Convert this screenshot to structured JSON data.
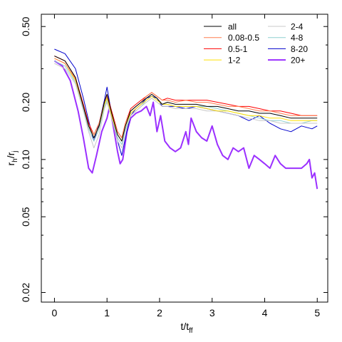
{
  "chart_data": {
    "type": "line",
    "xlabel": "t/t",
    "xlabel_sub": "ff",
    "ylabel": "r",
    "ylabel_sub1": "h",
    "ylabel_mid": "/r",
    "ylabel_sub2": "j",
    "xlim": [
      -0.25,
      5.2
    ],
    "ylim": [
      0.0178,
      0.58
    ],
    "yscale": "log",
    "xticks": [
      0,
      1,
      2,
      3,
      4,
      5
    ],
    "xtick_labels": [
      "0",
      "1",
      "2",
      "3",
      "4",
      "5"
    ],
    "yticks": [
      0.02,
      0.05,
      0.1,
      0.2,
      0.5
    ],
    "ytick_labels": [
      "0.02",
      "0.05",
      "0.10",
      "0.20",
      "0.50"
    ],
    "grid": false,
    "legend_position": "top-right",
    "legend_order": [
      "all",
      "0.08-0.5",
      "0.5-1",
      "1-2",
      "2-4",
      "4-8",
      "8-20",
      "20+"
    ],
    "series": [
      {
        "name": "all",
        "color": "#000000",
        "width": 1,
        "x": [
          0,
          0.2,
          0.4,
          0.55,
          0.65,
          0.75,
          0.85,
          0.95,
          1.0,
          1.1,
          1.2,
          1.28,
          1.35,
          1.45,
          1.55,
          1.65,
          1.75,
          1.85,
          1.95,
          2.05,
          2.15,
          2.3,
          2.5,
          2.7,
          2.9,
          3.1,
          3.3,
          3.5,
          3.7,
          3.9,
          4.1,
          4.3,
          4.5,
          4.7,
          4.9,
          5.0
        ],
        "y": [
          0.35,
          0.33,
          0.27,
          0.19,
          0.15,
          0.13,
          0.15,
          0.2,
          0.22,
          0.17,
          0.135,
          0.125,
          0.15,
          0.18,
          0.19,
          0.2,
          0.21,
          0.22,
          0.21,
          0.195,
          0.2,
          0.195,
          0.195,
          0.195,
          0.19,
          0.19,
          0.185,
          0.18,
          0.18,
          0.175,
          0.175,
          0.17,
          0.165,
          0.165,
          0.165,
          0.165
        ]
      },
      {
        "name": "0.08-0.5",
        "color": "#ff7f50",
        "width": 1,
        "x": [
          0,
          0.2,
          0.4,
          0.55,
          0.65,
          0.75,
          0.85,
          0.95,
          1.0,
          1.1,
          1.2,
          1.28,
          1.35,
          1.45,
          1.55,
          1.65,
          1.75,
          1.85,
          1.95,
          2.05,
          2.15,
          2.3,
          2.5,
          2.7,
          2.9,
          3.1,
          3.3,
          3.5,
          3.7,
          3.9,
          4.1,
          4.3,
          4.5,
          4.7,
          4.9,
          5.0
        ],
        "y": [
          0.34,
          0.32,
          0.265,
          0.19,
          0.15,
          0.135,
          0.155,
          0.2,
          0.215,
          0.17,
          0.14,
          0.13,
          0.155,
          0.18,
          0.19,
          0.2,
          0.215,
          0.225,
          0.215,
          0.205,
          0.205,
          0.2,
          0.205,
          0.2,
          0.2,
          0.195,
          0.19,
          0.19,
          0.185,
          0.18,
          0.18,
          0.175,
          0.17,
          0.17,
          0.17,
          0.17
        ]
      },
      {
        "name": "0.5-1",
        "color": "#ff0000",
        "width": 1,
        "x": [
          0,
          0.2,
          0.4,
          0.55,
          0.65,
          0.75,
          0.85,
          0.95,
          1.0,
          1.1,
          1.2,
          1.28,
          1.35,
          1.45,
          1.55,
          1.65,
          1.75,
          1.85,
          1.95,
          2.05,
          2.15,
          2.3,
          2.5,
          2.7,
          2.9,
          3.1,
          3.3,
          3.5,
          3.7,
          3.9,
          4.1,
          4.3,
          4.5,
          4.7,
          4.9,
          5.0
        ],
        "y": [
          0.35,
          0.33,
          0.27,
          0.195,
          0.155,
          0.135,
          0.155,
          0.2,
          0.22,
          0.175,
          0.14,
          0.13,
          0.155,
          0.185,
          0.195,
          0.205,
          0.215,
          0.225,
          0.215,
          0.205,
          0.21,
          0.205,
          0.205,
          0.205,
          0.205,
          0.2,
          0.195,
          0.19,
          0.19,
          0.185,
          0.18,
          0.18,
          0.175,
          0.17,
          0.17,
          0.17
        ]
      },
      {
        "name": "1-2",
        "color": "#ffe000",
        "width": 1,
        "x": [
          0,
          0.2,
          0.4,
          0.55,
          0.65,
          0.75,
          0.85,
          0.95,
          1.0,
          1.1,
          1.2,
          1.28,
          1.35,
          1.45,
          1.55,
          1.65,
          1.75,
          1.85,
          1.95,
          2.05,
          2.15,
          2.3,
          2.5,
          2.7,
          2.9,
          3.1,
          3.3,
          3.5,
          3.7,
          3.9,
          4.1,
          4.3,
          4.5,
          4.7,
          4.9,
          5.0
        ],
        "y": [
          0.34,
          0.32,
          0.26,
          0.19,
          0.15,
          0.13,
          0.15,
          0.195,
          0.21,
          0.165,
          0.135,
          0.125,
          0.15,
          0.175,
          0.185,
          0.195,
          0.205,
          0.215,
          0.205,
          0.195,
          0.195,
          0.19,
          0.19,
          0.19,
          0.185,
          0.18,
          0.18,
          0.175,
          0.17,
          0.17,
          0.165,
          0.165,
          0.16,
          0.16,
          0.16,
          0.16
        ]
      },
      {
        "name": "2-4",
        "color": "#c8c8c8",
        "width": 1,
        "x": [
          0,
          0.2,
          0.4,
          0.55,
          0.65,
          0.75,
          0.85,
          0.95,
          1.0,
          1.1,
          1.2,
          1.28,
          1.35,
          1.45,
          1.55,
          1.65,
          1.75,
          1.85,
          1.95,
          2.05,
          2.15,
          2.3,
          2.5,
          2.7,
          2.9,
          3.1,
          3.3,
          3.5,
          3.7,
          3.9,
          4.1,
          4.3,
          4.5,
          4.7,
          4.9,
          5.0
        ],
        "y": [
          0.32,
          0.3,
          0.25,
          0.18,
          0.14,
          0.115,
          0.135,
          0.185,
          0.2,
          0.16,
          0.125,
          0.115,
          0.14,
          0.17,
          0.18,
          0.19,
          0.2,
          0.21,
          0.2,
          0.19,
          0.19,
          0.185,
          0.185,
          0.185,
          0.18,
          0.18,
          0.175,
          0.17,
          0.165,
          0.16,
          0.16,
          0.155,
          0.155,
          0.155,
          0.155,
          0.155
        ]
      },
      {
        "name": "4-8",
        "color": "#8fd0d0",
        "width": 1,
        "x": [
          0,
          0.2,
          0.4,
          0.55,
          0.65,
          0.75,
          0.85,
          0.95,
          1.0,
          1.1,
          1.2,
          1.28,
          1.35,
          1.45,
          1.55,
          1.65,
          1.75,
          1.85,
          1.95,
          2.05,
          2.15,
          2.3,
          2.5,
          2.7,
          2.9,
          3.1,
          3.3,
          3.5,
          3.7,
          3.9,
          4.1,
          4.3,
          4.5,
          4.7,
          4.9,
          5.0
        ],
        "y": [
          0.33,
          0.31,
          0.255,
          0.185,
          0.145,
          0.125,
          0.145,
          0.19,
          0.205,
          0.165,
          0.13,
          0.12,
          0.145,
          0.17,
          0.18,
          0.19,
          0.205,
          0.215,
          0.205,
          0.195,
          0.195,
          0.19,
          0.19,
          0.19,
          0.19,
          0.185,
          0.18,
          0.175,
          0.17,
          0.165,
          0.16,
          0.16,
          0.155,
          0.155,
          0.16,
          0.16
        ]
      },
      {
        "name": "8-20",
        "color": "#0000cc",
        "width": 1,
        "x": [
          0,
          0.2,
          0.4,
          0.55,
          0.65,
          0.75,
          0.85,
          0.95,
          1.0,
          1.1,
          1.2,
          1.28,
          1.35,
          1.45,
          1.55,
          1.65,
          1.75,
          1.85,
          1.95,
          2.05,
          2.15,
          2.3,
          2.5,
          2.7,
          2.9,
          3.1,
          3.3,
          3.5,
          3.7,
          3.9,
          4.1,
          4.3,
          4.5,
          4.7,
          4.9,
          5.0
        ],
        "y": [
          0.38,
          0.36,
          0.3,
          0.21,
          0.16,
          0.125,
          0.155,
          0.205,
          0.24,
          0.165,
          0.125,
          0.105,
          0.13,
          0.17,
          0.185,
          0.195,
          0.21,
          0.215,
          0.21,
          0.19,
          0.19,
          0.19,
          0.185,
          0.19,
          0.185,
          0.18,
          0.175,
          0.17,
          0.16,
          0.17,
          0.155,
          0.145,
          0.14,
          0.15,
          0.145,
          0.15
        ]
      },
      {
        "name": "20+",
        "color": "#9b30ff",
        "width": 2,
        "x": [
          0,
          0.15,
          0.3,
          0.45,
          0.55,
          0.65,
          0.72,
          0.8,
          0.9,
          1.0,
          1.05,
          1.1,
          1.2,
          1.25,
          1.3,
          1.38,
          1.45,
          1.55,
          1.65,
          1.75,
          1.82,
          1.88,
          1.95,
          2.02,
          2.1,
          2.2,
          2.3,
          2.4,
          2.5,
          2.55,
          2.6,
          2.7,
          2.8,
          2.9,
          3.0,
          3.1,
          3.2,
          3.3,
          3.4,
          3.5,
          3.6,
          3.7,
          3.8,
          3.9,
          4.0,
          4.1,
          4.2,
          4.3,
          4.4,
          4.5,
          4.6,
          4.7,
          4.8,
          4.85,
          4.9,
          4.95,
          5.0
        ],
        "y": [
          0.33,
          0.31,
          0.26,
          0.18,
          0.13,
          0.09,
          0.085,
          0.105,
          0.14,
          0.165,
          0.19,
          0.16,
          0.11,
          0.095,
          0.1,
          0.14,
          0.165,
          0.175,
          0.18,
          0.19,
          0.17,
          0.2,
          0.14,
          0.17,
          0.125,
          0.115,
          0.11,
          0.115,
          0.14,
          0.12,
          0.165,
          0.14,
          0.13,
          0.125,
          0.15,
          0.12,
          0.105,
          0.1,
          0.115,
          0.11,
          0.115,
          0.09,
          0.105,
          0.1,
          0.095,
          0.09,
          0.105,
          0.095,
          0.09,
          0.09,
          0.09,
          0.09,
          0.095,
          0.1,
          0.08,
          0.085,
          0.07
        ]
      }
    ]
  }
}
